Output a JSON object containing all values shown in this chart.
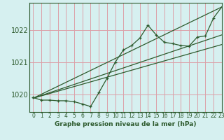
{
  "title": "Graphe pression niveau de la mer (hPa)",
  "bg_color": "#d6f0f0",
  "grid_color": "#dca0a8",
  "line_color": "#2d5a2d",
  "xlim": [
    -0.5,
    23
  ],
  "ylim": [
    1019.45,
    1022.85
  ],
  "yticks": [
    1020,
    1021,
    1022
  ],
  "xticks": [
    0,
    1,
    2,
    3,
    4,
    5,
    6,
    7,
    8,
    9,
    10,
    11,
    12,
    13,
    14,
    15,
    16,
    17,
    18,
    19,
    20,
    21,
    22,
    23
  ],
  "main_data": {
    "x": [
      0,
      1,
      2,
      3,
      4,
      5,
      6,
      7,
      8,
      9,
      10,
      11,
      12,
      13,
      14,
      15,
      16,
      17,
      18,
      19,
      20,
      21,
      22,
      23
    ],
    "y": [
      1019.9,
      1019.82,
      1019.82,
      1019.8,
      1019.8,
      1019.77,
      1019.7,
      1019.62,
      1020.05,
      1020.5,
      1021.0,
      1021.38,
      1021.52,
      1021.75,
      1022.15,
      1021.85,
      1021.62,
      1021.58,
      1021.52,
      1021.5,
      1021.78,
      1021.82,
      1022.38,
      1022.72
    ]
  },
  "trend_lines": [
    {
      "x": [
        0,
        23
      ],
      "y": [
        1019.88,
        1022.72
      ]
    },
    {
      "x": [
        0,
        23
      ],
      "y": [
        1019.88,
        1021.55
      ]
    },
    {
      "x": [
        0,
        23
      ],
      "y": [
        1019.88,
        1021.85
      ]
    }
  ]
}
